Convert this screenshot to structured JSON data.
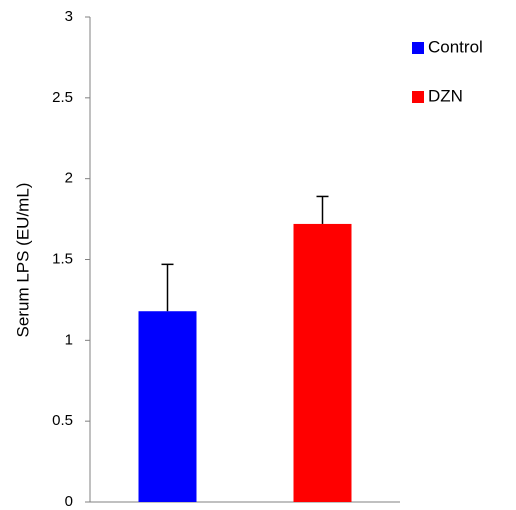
{
  "chart_data": {
    "type": "bar",
    "y_label": "Serum LPS (EU/mL)",
    "categories": [
      null
    ],
    "series": [
      {
        "name": "Control",
        "color": "#0000ff",
        "values": [
          1.18
        ],
        "errors": [
          0.29
        ]
      },
      {
        "name": "DZN",
        "color": "#ff0000",
        "values": [
          1.72
        ],
        "errors": [
          0.17
        ]
      }
    ],
    "ylim": [
      0,
      3
    ],
    "yticks": [
      0,
      0.5,
      1,
      1.5,
      2,
      2.5,
      3
    ],
    "grid": false,
    "legend": "right"
  }
}
